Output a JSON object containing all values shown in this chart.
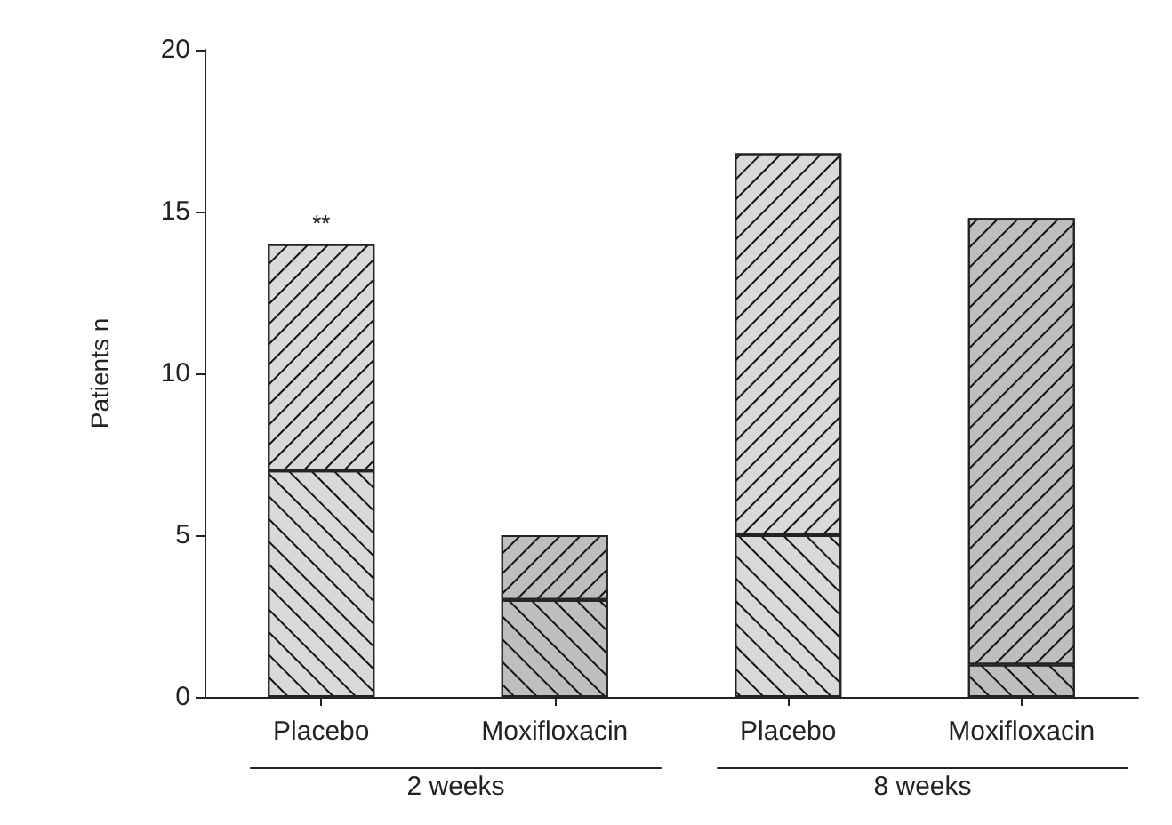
{
  "chart_data": {
    "type": "bar",
    "stacked": true,
    "ylabel": "Patients n",
    "categories": [
      "Placebo",
      "Moxifloxacin",
      "Placebo",
      "Moxifloxacin"
    ],
    "series": [
      {
        "colors": [
          "#d9d9d9",
          "#bebebe",
          "#d9d9d9",
          "#bebebe"
        ],
        "values": [
          7,
          3,
          5,
          1
        ]
      },
      {
        "colors": [
          "#d9d9d9",
          "#bebebe",
          "#d9d9d9",
          "#bebebe"
        ],
        "values": [
          7,
          2,
          11.8,
          13.8
        ],
        "value_labels": [
          "**",
          null,
          null,
          null
        ]
      }
    ],
    "ylim": [
      0,
      20
    ],
    "yticks": [
      0,
      5,
      10,
      15,
      20
    ],
    "grid": false,
    "annotations": [
      "2 weeks",
      "8 weeks"
    ]
  }
}
